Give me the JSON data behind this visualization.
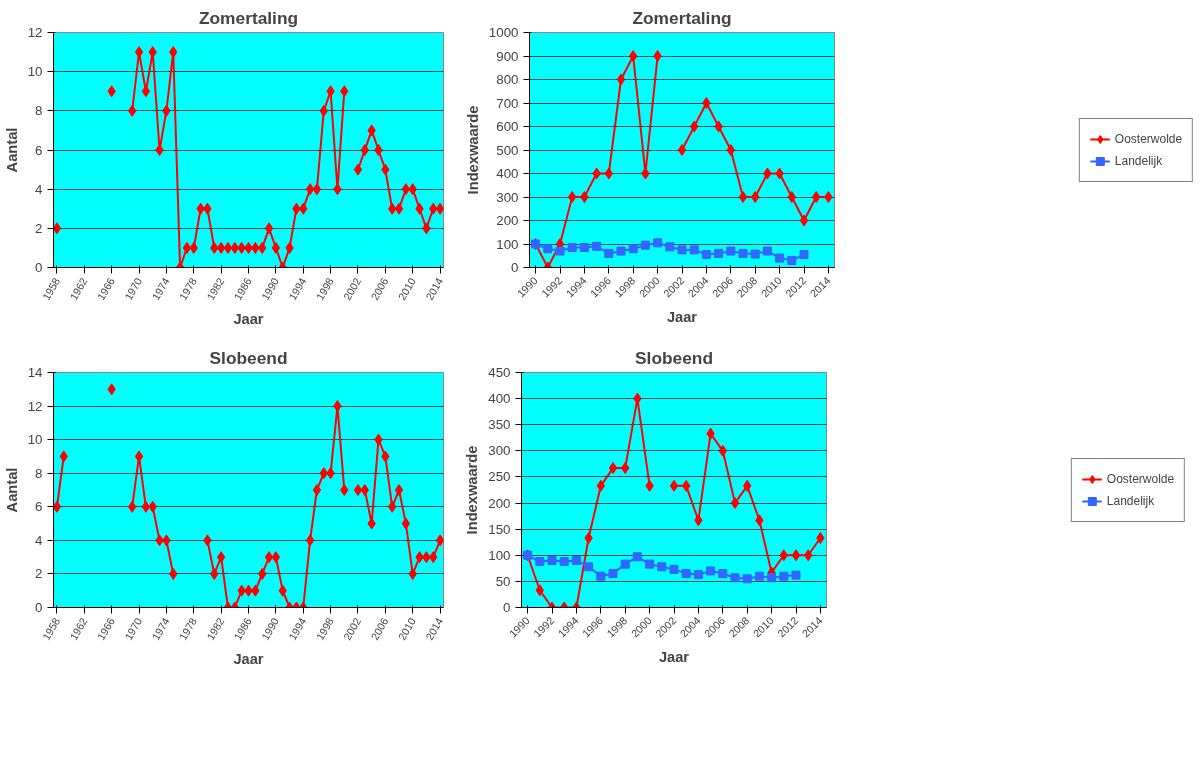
{
  "chart_data": [
    {
      "type": "line",
      "title": "Zomertaling",
      "xlabel": "Jaar",
      "ylabel": "Aantal",
      "xlim": [
        1957.5,
        2014.5
      ],
      "xticks": [
        1958,
        1962,
        1966,
        1970,
        1974,
        1978,
        1982,
        1986,
        1990,
        1994,
        1998,
        2002,
        2006,
        2010,
        2014
      ],
      "ylim": [
        0,
        12
      ],
      "yticks": [
        0,
        2,
        4,
        6,
        8,
        10,
        12
      ],
      "grid": "y",
      "legend": false,
      "x": [
        1958,
        1959,
        1960,
        1961,
        1962,
        1963,
        1964,
        1965,
        1966,
        1967,
        1968,
        1969,
        1970,
        1971,
        1972,
        1973,
        1974,
        1975,
        1976,
        1977,
        1978,
        1979,
        1980,
        1981,
        1982,
        1983,
        1984,
        1985,
        1986,
        1987,
        1988,
        1989,
        1990,
        1991,
        1992,
        1993,
        1994,
        1995,
        1996,
        1997,
        1998,
        1999,
        2000,
        2001,
        2002,
        2003,
        2004,
        2005,
        2006,
        2007,
        2008,
        2009,
        2010,
        2011,
        2012,
        2013,
        2014
      ],
      "series": [
        {
          "color": "#ff0000",
          "marker": "diamond",
          "values": [
            2,
            null,
            null,
            null,
            null,
            null,
            null,
            null,
            9,
            null,
            null,
            8,
            11,
            9,
            11,
            6,
            8,
            11,
            0,
            1,
            1,
            3,
            3,
            1,
            1,
            1,
            1,
            1,
            1,
            1,
            1,
            2,
            1,
            0,
            1,
            3,
            3,
            4,
            4,
            8,
            9,
            4,
            9,
            null,
            5,
            6,
            7,
            6,
            5,
            3,
            3,
            4,
            4,
            3,
            2,
            3,
            3
          ]
        }
      ]
    },
    {
      "type": "line",
      "title": "Zomertaling",
      "xlabel": "Jaar",
      "ylabel": "Indexwaarde",
      "xlim": [
        1989.5,
        2014.5
      ],
      "xticks": [
        1990,
        1992,
        1994,
        1996,
        1998,
        2000,
        2002,
        2004,
        2006,
        2008,
        2010,
        2012,
        2014
      ],
      "ylim": [
        0,
        1000
      ],
      "yticks": [
        0,
        100,
        200,
        300,
        400,
        500,
        600,
        700,
        800,
        900,
        1000
      ],
      "grid": "y",
      "legend": "right",
      "x": [
        1990,
        1991,
        1992,
        1993,
        1994,
        1995,
        1996,
        1997,
        1998,
        1999,
        2000,
        2001,
        2002,
        2003,
        2004,
        2005,
        2006,
        2007,
        2008,
        2009,
        2010,
        2011,
        2012,
        2013,
        2014
      ],
      "series": [
        {
          "name": "Oosterwolde",
          "color": "#ff0000",
          "marker": "diamond",
          "values": [
            100,
            0,
            100,
            300,
            300,
            400,
            400,
            800,
            900,
            400,
            900,
            null,
            500,
            600,
            700,
            600,
            500,
            300,
            300,
            400,
            400,
            300,
            200,
            300,
            300
          ]
        },
        {
          "name": "Landelijk",
          "color": "#3366ff",
          "marker": "square",
          "values": [
            100,
            80,
            70,
            85,
            85,
            90,
            60,
            70,
            80,
            95,
            105,
            88,
            75,
            75,
            55,
            60,
            70,
            60,
            57,
            70,
            40,
            30,
            55,
            null,
            null
          ]
        }
      ]
    },
    {
      "type": "line",
      "title": "Slobeend",
      "xlabel": "Jaar",
      "ylabel": "Aantal",
      "xlim": [
        1957.5,
        2014.5
      ],
      "xticks": [
        1958,
        1962,
        1966,
        1970,
        1974,
        1978,
        1982,
        1986,
        1990,
        1994,
        1998,
        2002,
        2006,
        2010,
        2014
      ],
      "ylim": [
        0,
        14
      ],
      "yticks": [
        0,
        2,
        4,
        6,
        8,
        10,
        12,
        14
      ],
      "grid": "y",
      "legend": false,
      "x": [
        1958,
        1959,
        1960,
        1961,
        1962,
        1963,
        1964,
        1965,
        1966,
        1967,
        1968,
        1969,
        1970,
        1971,
        1972,
        1973,
        1974,
        1975,
        1976,
        1977,
        1978,
        1979,
        1980,
        1981,
        1982,
        1983,
        1984,
        1985,
        1986,
        1987,
        1988,
        1989,
        1990,
        1991,
        1992,
        1993,
        1994,
        1995,
        1996,
        1997,
        1998,
        1999,
        2000,
        2001,
        2002,
        2003,
        2004,
        2005,
        2006,
        2007,
        2008,
        2009,
        2010,
        2011,
        2012,
        2013,
        2014
      ],
      "series": [
        {
          "color": "#ff0000",
          "marker": "diamond",
          "values": [
            6,
            9,
            null,
            null,
            null,
            null,
            null,
            null,
            13,
            null,
            null,
            6,
            9,
            6,
            6,
            4,
            4,
            2,
            null,
            null,
            null,
            null,
            4,
            2,
            3,
            0,
            0,
            1,
            1,
            1,
            2,
            3,
            3,
            1,
            0,
            0,
            0,
            4,
            7,
            8,
            8,
            12,
            7,
            null,
            7,
            7,
            5,
            10,
            9,
            6,
            7,
            5,
            2,
            3,
            3,
            3,
            4
          ]
        }
      ]
    },
    {
      "type": "line",
      "title": "Slobeend",
      "xlabel": "Jaar",
      "ylabel": "Indexwaarde",
      "xlim": [
        1989.5,
        2014.5
      ],
      "xticks": [
        1990,
        1992,
        1994,
        1996,
        1998,
        2000,
        2002,
        2004,
        2006,
        2008,
        2010,
        2012,
        2014
      ],
      "ylim": [
        0,
        450
      ],
      "yticks": [
        0,
        50,
        100,
        150,
        200,
        250,
        300,
        350,
        400,
        450
      ],
      "grid": "y",
      "legend": "right",
      "x": [
        1990,
        1991,
        1992,
        1993,
        1994,
        1995,
        1996,
        1997,
        1998,
        1999,
        2000,
        2001,
        2002,
        2003,
        2004,
        2005,
        2006,
        2007,
        2008,
        2009,
        2010,
        2011,
        2012,
        2013,
        2014
      ],
      "series": [
        {
          "name": "Oosterwolde",
          "color": "#ff0000",
          "marker": "diamond",
          "values": [
            100,
            33,
            0,
            0,
            0,
            133,
            233,
            267,
            267,
            400,
            233,
            null,
            233,
            233,
            167,
            333,
            300,
            200,
            233,
            167,
            67,
            100,
            100,
            100,
            133
          ]
        },
        {
          "name": "Landelijk",
          "color": "#3366ff",
          "marker": "square",
          "values": [
            100,
            88,
            90,
            88,
            90,
            78,
            60,
            65,
            83,
            97,
            83,
            78,
            73,
            65,
            63,
            70,
            65,
            57,
            55,
            60,
            57,
            60,
            62,
            null,
            null
          ]
        }
      ]
    }
  ]
}
